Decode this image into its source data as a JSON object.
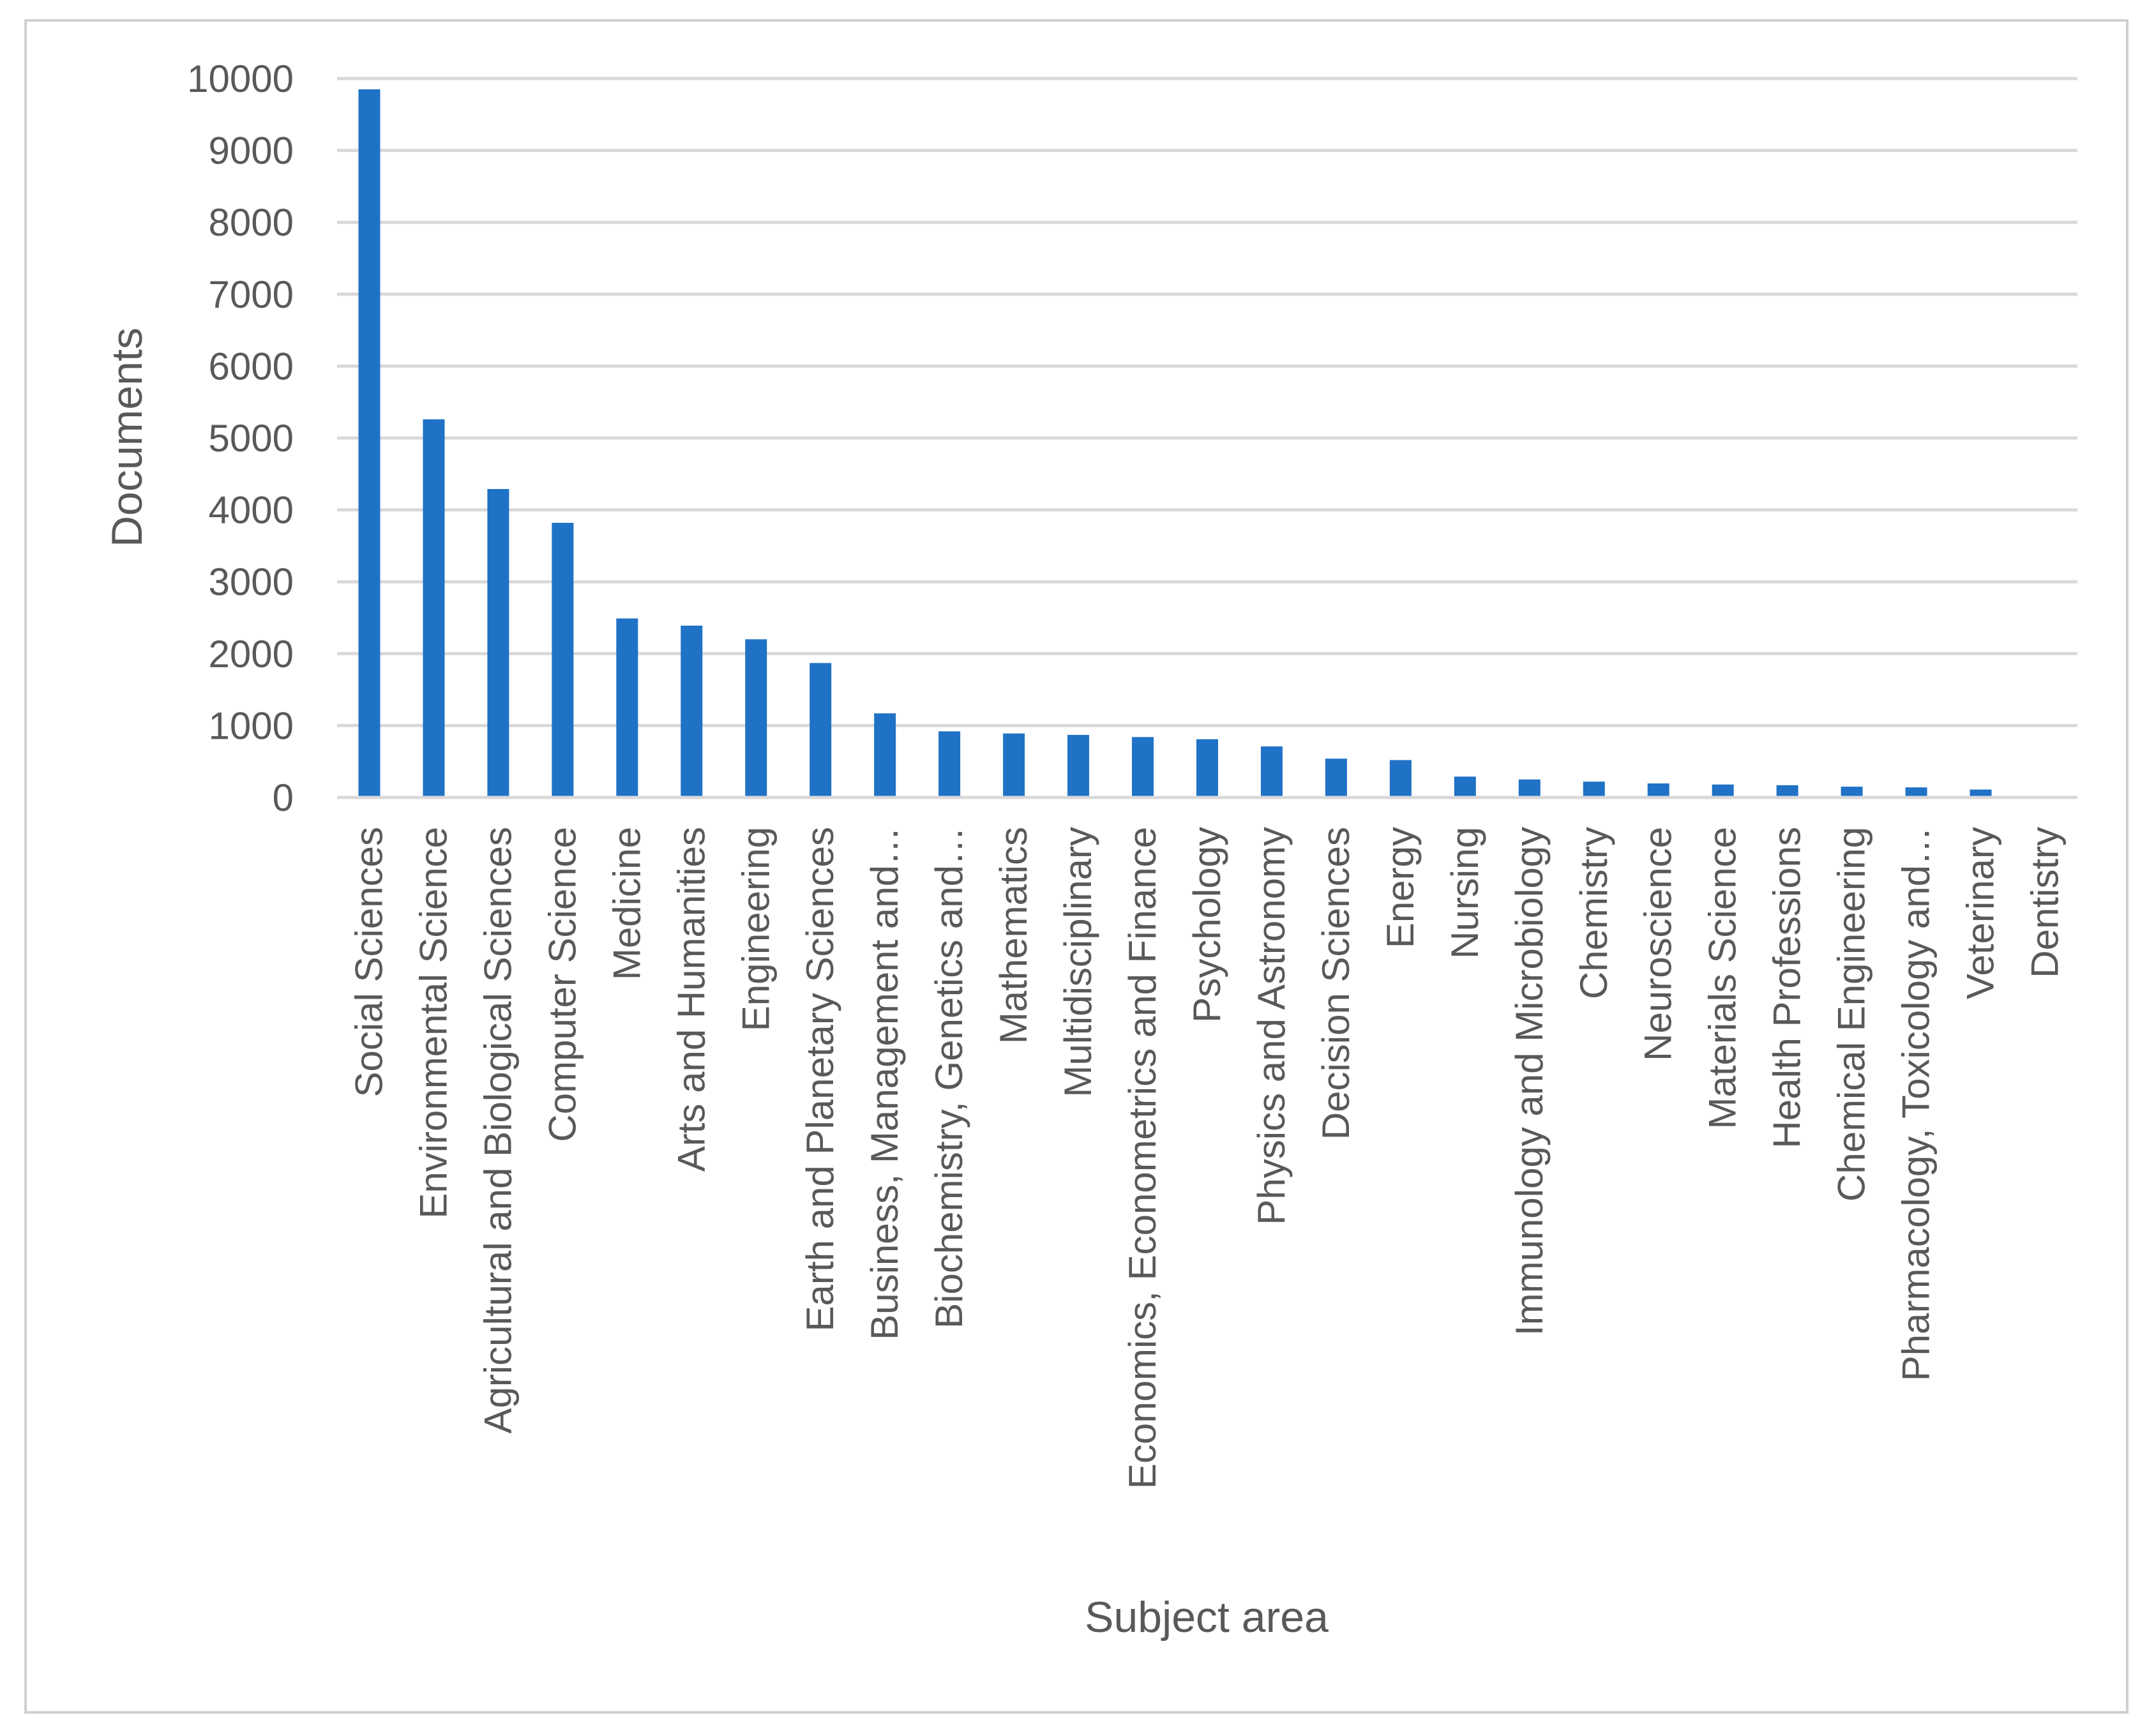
{
  "chart_data": {
    "type": "bar",
    "xlabel": "Subject area",
    "ylabel": "Documents",
    "ylim": [
      0,
      10000
    ],
    "yticks": [
      0,
      1000,
      2000,
      3000,
      4000,
      5000,
      6000,
      7000,
      8000,
      9000,
      10000
    ],
    "grid": true,
    "legend": "none",
    "bar_color": "#1f72c6",
    "categories": [
      "Social Sciences",
      "Environmental Science",
      "Agricultural and Biological Sciences",
      "Computer Science",
      "Medicine",
      "Arts and Humanities",
      "Engineering",
      "Earth and Planetary Sciences",
      "Business, Management and…",
      "Biochemistry, Genetics and…",
      "Mathematics",
      "Multidisciplinary",
      "Economics, Econometrics and Finance",
      "Psychology",
      "Physics and Astronomy",
      "Decision Sciences",
      "Energy",
      "Nursing",
      "Immunology and Microbiology",
      "Chemistry",
      "Neuroscience",
      "Materials Science",
      "Health Professions",
      "Chemical Engineering",
      "Pharmacology, Toxicology and…",
      "Veterinary",
      "Dentistry"
    ],
    "values": [
      9850,
      5260,
      4290,
      3820,
      2490,
      2390,
      2200,
      1870,
      1170,
      920,
      890,
      870,
      840,
      810,
      710,
      540,
      520,
      290,
      250,
      220,
      195,
      180,
      170,
      150,
      140,
      110,
      5
    ]
  }
}
